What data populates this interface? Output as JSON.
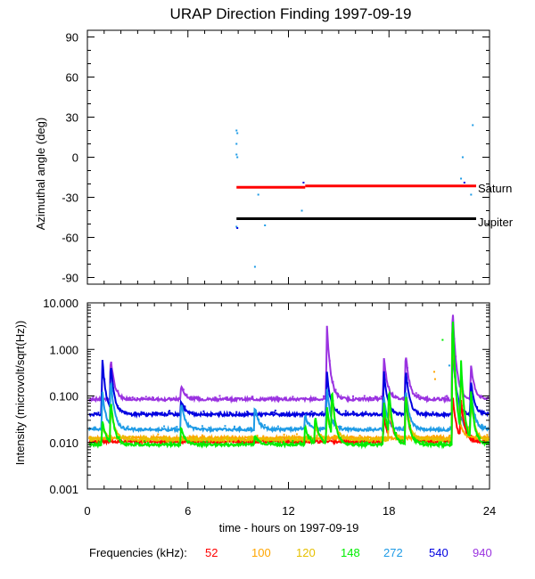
{
  "chart_data": [
    {
      "type": "scatter",
      "title": "URAP Direction Finding  1997-09-19",
      "ylabel": "Azimuthal angle (deg)",
      "xlim": [
        0,
        24
      ],
      "ylim": [
        -95,
        95
      ],
      "yticks": [
        90,
        60,
        30,
        0,
        -30,
        -60,
        -90
      ],
      "reference_lines": [
        {
          "name": "Saturn",
          "color": "#ff0000",
          "segments": [
            {
              "x0": 8.9,
              "x1": 13.0,
              "y": -22.5
            },
            {
              "x0": 13.0,
              "x1": 23.2,
              "y": -21.5
            }
          ]
        },
        {
          "name": "Jupiter",
          "color": "#000000",
          "segments": [
            {
              "x0": 8.9,
              "x1": 23.2,
              "y": -46
            }
          ]
        }
      ],
      "points": [
        {
          "x": 8.9,
          "y": 20,
          "c": "272"
        },
        {
          "x": 8.95,
          "y": 18,
          "c": "272"
        },
        {
          "x": 8.9,
          "y": 10,
          "c": "272"
        },
        {
          "x": 8.9,
          "y": 2,
          "c": "272"
        },
        {
          "x": 8.95,
          "y": 0,
          "c": "272"
        },
        {
          "x": 8.9,
          "y": -52,
          "c": "272"
        },
        {
          "x": 8.95,
          "y": -53,
          "c": "540"
        },
        {
          "x": 10.2,
          "y": -28,
          "c": "272"
        },
        {
          "x": 10.6,
          "y": -51,
          "c": "272"
        },
        {
          "x": 10.0,
          "y": -82,
          "c": "272"
        },
        {
          "x": 12.8,
          "y": -40,
          "c": "272"
        },
        {
          "x": 12.9,
          "y": -19,
          "c": "540"
        },
        {
          "x": 22.4,
          "y": 0,
          "c": "272"
        },
        {
          "x": 22.3,
          "y": -16,
          "c": "272"
        },
        {
          "x": 22.5,
          "y": -19,
          "c": "540"
        },
        {
          "x": 23.0,
          "y": 24,
          "c": "272"
        },
        {
          "x": 22.9,
          "y": -28,
          "c": "272"
        }
      ]
    },
    {
      "type": "line",
      "ylabel": "Intensity (microvolt/sqrt(Hz))",
      "xlabel": "time - hours on 1997-09-19",
      "xlim": [
        0,
        24
      ],
      "ylim": [
        0.001,
        10
      ],
      "scale": "log",
      "yticklabels": [
        "10.000",
        "1.000",
        "0.100",
        "0.010",
        "0.001"
      ],
      "xticklabels": [
        "0",
        "6",
        "12",
        "18",
        "24"
      ],
      "baselines": {
        "52": 0.0105,
        "100": 0.0125,
        "120": 0.0115,
        "148": 0.009,
        "272": 0.019,
        "540": 0.04,
        "940": 0.085
      },
      "bursts": [
        {
          "t": 0.9,
          "amp": {
            "540": 1.2,
            "272": 0.8,
            "148": 0.5,
            "120": 0.3
          }
        },
        {
          "t": 1.4,
          "amp": {
            "940": 0.9,
            "540": 1.0,
            "272": 1.0,
            "148": 0.9,
            "120": 0.7
          }
        },
        {
          "t": 5.6,
          "amp": {
            "940": 0.3,
            "540": 0.3,
            "272": 0.6,
            "148": 0.4
          }
        },
        {
          "t": 10.0,
          "amp": {
            "272": 0.5,
            "148": 0.2
          }
        },
        {
          "t": 13.0,
          "amp": {
            "272": 0.3,
            "148": 0.4
          }
        },
        {
          "t": 13.6,
          "amp": {
            "148": 0.6,
            "120": 0.3
          }
        },
        {
          "t": 14.3,
          "amp": {
            "940": 1.6,
            "540": 0.9,
            "272": 0.9,
            "148": 0.8,
            "120": 0.6
          }
        },
        {
          "t": 14.6,
          "amp": {
            "148": 1.0,
            "120": 0.8
          }
        },
        {
          "t": 17.7,
          "amp": {
            "940": 0.9,
            "540": 0.9,
            "272": 0.7,
            "148": 0.9,
            "52": 0.5
          }
        },
        {
          "t": 18.0,
          "amp": {
            "148": 1.0,
            "120": 0.8,
            "52": 0.7
          }
        },
        {
          "t": 19.0,
          "amp": {
            "940": 1.0,
            "540": 1.0,
            "272": 0.9,
            "148": 1.1,
            "120": 1.0,
            "52": 0.9
          }
        },
        {
          "t": 21.8,
          "amp": {
            "940": 2.0,
            "540": 1.5,
            "272": 2.5,
            "148": 2.9,
            "120": 2.7,
            "100": 2.5,
            "52": 1.0
          }
        },
        {
          "t": 22.3,
          "amp": {
            "148": 1.5,
            "120": 1.2,
            "52": 0.8
          }
        },
        {
          "t": 22.9,
          "amp": {
            "940": 0.7,
            "540": 0.7,
            "272": 0.8,
            "148": 1.0,
            "120": 0.8
          }
        }
      ],
      "isolated_points": [
        {
          "x": 21.2,
          "y": 1.6,
          "c": "148"
        },
        {
          "x": 20.7,
          "y": 0.33,
          "c": "100"
        },
        {
          "x": 20.75,
          "y": 0.23,
          "c": "100"
        },
        {
          "x": 21.6,
          "y": 0.45,
          "c": "272"
        }
      ],
      "series_order": [
        "940",
        "540",
        "272",
        "52",
        "100",
        "120",
        "148"
      ]
    }
  ],
  "planet_labels": {
    "saturn": "Saturn",
    "jupiter": "Jupiter"
  },
  "legend": {
    "title": "Frequencies (kHz):",
    "items": [
      {
        "id": "52",
        "label": "52",
        "color": "#ff0000"
      },
      {
        "id": "100",
        "label": "100",
        "color": "#ffa500"
      },
      {
        "id": "120",
        "label": "120",
        "color": "#e6c000"
      },
      {
        "id": "148",
        "label": "148",
        "color": "#00ee00"
      },
      {
        "id": "272",
        "label": "272",
        "color": "#1e9be6"
      },
      {
        "id": "540",
        "label": "540",
        "color": "#0000e0"
      },
      {
        "id": "940",
        "label": "940",
        "color": "#9a32e0"
      }
    ]
  }
}
